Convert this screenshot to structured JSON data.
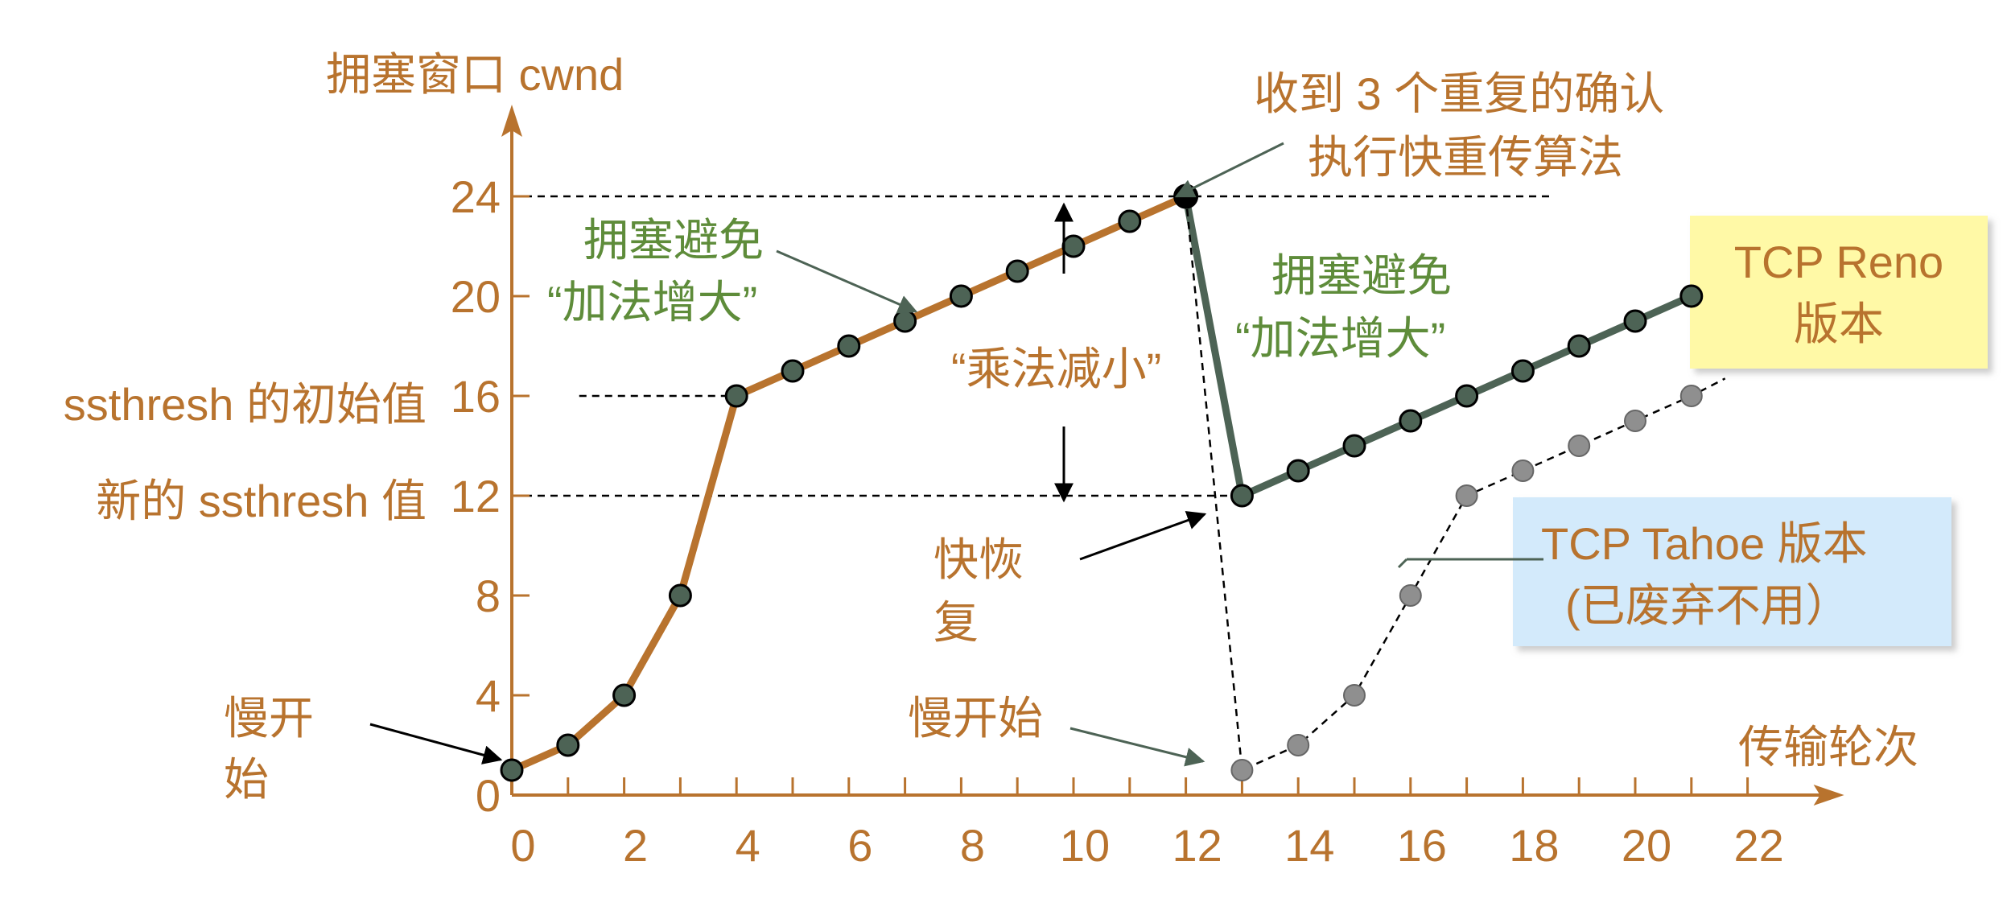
{
  "chart_data": {
    "type": "line",
    "ylabel": "拥塞窗口 cwnd",
    "xlabel": "传输轮次",
    "xlim": [
      0,
      22
    ],
    "ylim": [
      0,
      24
    ],
    "x_ticks": [
      "0",
      "2",
      "4",
      "6",
      "8",
      "10",
      "12",
      "14",
      "16",
      "18",
      "20",
      "22"
    ],
    "y_ticks": [
      "0",
      "4",
      "8",
      "12",
      "16",
      "20",
      "24"
    ],
    "series": [
      {
        "name": "",
        "color": "#b8732e",
        "style": "solid",
        "points": [
          [
            0,
            1
          ],
          [
            1,
            2
          ],
          [
            2,
            4
          ],
          [
            3,
            8
          ],
          [
            4,
            16
          ],
          [
            5,
            17
          ],
          [
            6,
            18
          ],
          [
            7,
            19
          ],
          [
            8,
            20
          ],
          [
            9,
            21
          ],
          [
            10,
            22
          ],
          [
            11,
            23
          ],
          [
            12,
            24
          ]
        ]
      },
      {
        "name": "TCP Reno 版本",
        "color": "#4d6355",
        "style": "solid",
        "points": [
          [
            12,
            24
          ],
          [
            13,
            12
          ],
          [
            14,
            13
          ],
          [
            15,
            14
          ],
          [
            16,
            15
          ],
          [
            17,
            16
          ],
          [
            18,
            17
          ],
          [
            19,
            18
          ],
          [
            20,
            19
          ],
          [
            21,
            20
          ]
        ]
      },
      {
        "name": "TCP Tahoe 版本 (已废弃不用）",
        "color": "#000000",
        "style": "dashed",
        "points": [
          [
            12,
            24
          ],
          [
            13,
            1
          ],
          [
            14,
            2
          ],
          [
            15,
            4
          ],
          [
            16,
            8
          ],
          [
            17,
            12
          ],
          [
            18,
            13
          ],
          [
            19,
            14
          ],
          [
            20,
            15
          ],
          [
            21,
            16
          ],
          [
            21.6,
            16.7
          ]
        ]
      }
    ],
    "reference_lines": [
      {
        "y": 24,
        "x_from": 0,
        "x_to": 18.5
      },
      {
        "y": 16,
        "x_from": 1.2,
        "x_to": 4
      },
      {
        "y": 12,
        "x_from": 0,
        "x_to": 13
      }
    ],
    "annotations": {
      "y16_label": "ssthresh 的初始值",
      "y12_label": "新的 ssthresh 值",
      "slow_start_1_l1": "慢开",
      "slow_start_1_l2": "始",
      "ca1_l1": "拥塞避免",
      "ca1_l2": "“加法增大”",
      "ca2_l1": "拥塞避免",
      "ca2_l2": "“加法增大”",
      "mult_decrease": "“乘法减小”",
      "dup_ack_l1": "收到 3 个重复的确认",
      "dup_ack_l2": "执行快重传算法",
      "fast_recovery_l1": "快恢",
      "fast_recovery_l2": "复",
      "slow_start_2": "慢开始",
      "reno_l1": "TCP Reno",
      "reno_l2": "版本",
      "tahoe_l1": "TCP Tahoe 版本",
      "tahoe_l2": "(已废弃不用）"
    },
    "colors": {
      "axis": "#b8732e",
      "annotation_text": "#b8732e",
      "phase_text": "#5e8c3a",
      "reno_box": "#fff9a6",
      "tahoe_box": "#d3eafb",
      "marker_fill": "#4d6355",
      "tahoe_marker_fill": "#8f8f8f"
    }
  }
}
